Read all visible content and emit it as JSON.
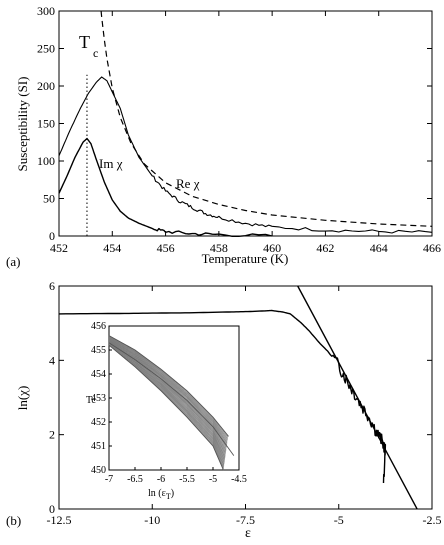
{
  "chart_data": [
    {
      "panel": "(a)",
      "type": "line",
      "xlabel": "Temperature (K)",
      "ylabel": "Susceptibility (SI)",
      "xlim": [
        452,
        466
      ],
      "ylim": [
        0,
        300
      ],
      "xticks": [
        452,
        454,
        456,
        458,
        460,
        462,
        464,
        466
      ],
      "yticks": [
        0,
        50,
        100,
        150,
        200,
        250,
        300
      ],
      "grid": false,
      "tc_marker": {
        "x": 453.05,
        "label_main": "T",
        "label_sub": "c"
      },
      "series": [
        {
          "name": "Re χ",
          "style": "solid",
          "x": [
            452,
            452.4,
            452.8,
            453.1,
            453.4,
            453.6,
            453.8,
            454.0,
            454.3,
            454.6,
            455.0,
            455.5,
            456.0,
            456.5,
            457.0,
            457.5,
            458.0,
            459.0,
            460.0,
            462.0,
            464.0,
            466.0
          ],
          "y": [
            107,
            140,
            170,
            190,
            205,
            212,
            207,
            192,
            170,
            135,
            105,
            80,
            60,
            47,
            38,
            30,
            25,
            17,
            12,
            8,
            6,
            5
          ]
        },
        {
          "name": "Im χ",
          "style": "solid",
          "x": [
            452,
            452.3,
            452.6,
            452.9,
            453.05,
            453.2,
            453.4,
            453.7,
            454.0,
            454.3,
            454.6,
            455.0,
            455.5,
            456.0,
            457.0,
            458.0,
            460.0
          ],
          "y": [
            57,
            80,
            105,
            125,
            130,
            123,
            102,
            72,
            48,
            33,
            24,
            17,
            10,
            6,
            3,
            2,
            0
          ]
        },
        {
          "name": "",
          "style": "dashed",
          "x": [
            453.58,
            453.6,
            453.7,
            453.8,
            454.0,
            454.3,
            454.7,
            455.2,
            456.0,
            457.0,
            458.0,
            459.0,
            460.0,
            462.0,
            464.0,
            466.0
          ],
          "y": [
            300,
            293,
            262,
            236,
            197,
            158,
            124,
            96,
            71,
            53,
            42,
            34,
            28,
            21,
            16,
            13
          ]
        }
      ],
      "annotations": [
        "Im χ",
        "Re χ"
      ]
    },
    {
      "panel": "(b)",
      "type": "line",
      "xlabel": "ε",
      "ylabel": "ln(χ)",
      "xlim": [
        -12.5,
        -2.5
      ],
      "ylim": [
        0,
        6
      ],
      "xticks": [
        -12.5,
        -10,
        -7.5,
        -5,
        -2.5
      ],
      "yticks": [
        0,
        2,
        4,
        6
      ],
      "grid": false,
      "series": [
        {
          "name": "",
          "style": "solid",
          "x": [
            -12.5,
            -11.0,
            -10.0,
            -9.0,
            -8.0,
            -7.5,
            -7.0,
            -6.8,
            -6.5,
            -6.3,
            -6.0,
            -5.8,
            -5.5,
            -5.3,
            -5.0,
            -4.8,
            -4.6,
            -4.4,
            -4.2,
            -4.0,
            -3.85,
            -3.75,
            -3.8
          ],
          "y": [
            5.25,
            5.26,
            5.27,
            5.28,
            5.3,
            5.31,
            5.33,
            5.34,
            5.3,
            5.25,
            5.0,
            4.8,
            4.45,
            4.25,
            3.85,
            3.5,
            3.15,
            2.8,
            2.5,
            2.1,
            1.85,
            1.6,
            0.7
          ]
        },
        {
          "name": "",
          "style": "solid-fit",
          "x": [
            -6.1,
            -2.9
          ],
          "y": [
            6.0,
            0.0
          ]
        }
      ],
      "inset": {
        "type": "line",
        "xlabel": "ln (ε",
        "xlabel_sub": "T",
        "xlabel_end": ")",
        "ylabel": "Tc",
        "xlim": [
          -7,
          -4.5
        ],
        "ylim": [
          450,
          456
        ],
        "xticks": [
          -7,
          -6.5,
          -6,
          -5.5,
          -5,
          -4.5
        ],
        "yticks": [
          450,
          451,
          452,
          453,
          454,
          455,
          456
        ],
        "series": [
          {
            "name": "",
            "x": [
              -7.0,
              -6.5,
              -6.0,
              -5.5,
              -5.0,
              -4.8
            ],
            "y": [
              455.2,
              454.3,
              453.3,
              452.2,
              451.0,
              450.0
            ]
          },
          {
            "name": "",
            "x": [
              -7.0,
              -6.5,
              -6.0,
              -5.5,
              -5.0,
              -4.6
            ],
            "y": [
              455.3,
              454.6,
              453.8,
              452.9,
              451.8,
              450.6
            ]
          },
          {
            "name": "",
            "x": [
              -7.0,
              -6.5,
              -6.0,
              -5.5,
              -5.0,
              -4.7
            ],
            "y": [
              455.6,
              455.0,
              454.2,
              453.3,
              452.2,
              451.4
            ]
          }
        ]
      }
    }
  ]
}
